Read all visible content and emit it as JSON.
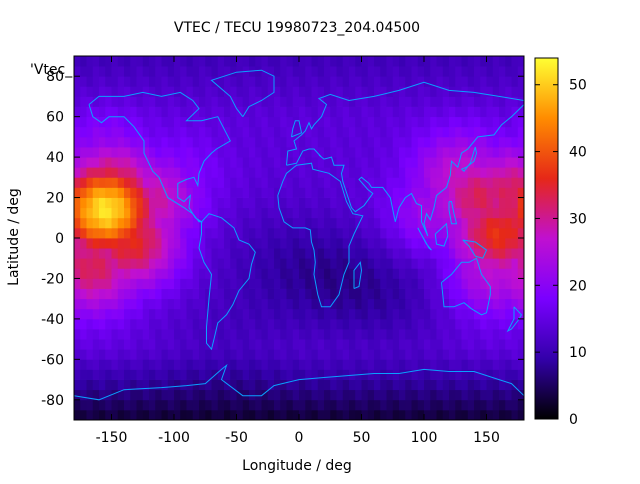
{
  "chart_data": {
    "type": "heatmap",
    "title": "VTEC / TECU 19980723_204.04500",
    "xlabel": "Longitude / deg",
    "ylabel": "Latitude / deg",
    "key_label": "'Vtec_",
    "xlim": [
      -180,
      180
    ],
    "ylim": [
      -90,
      90
    ],
    "zlim": [
      0,
      54
    ],
    "x_ticks": [
      -150,
      -100,
      -50,
      0,
      50,
      100,
      150
    ],
    "y_ticks": [
      -80,
      -60,
      -40,
      -20,
      0,
      20,
      40,
      60,
      80
    ],
    "colorbar_ticks": [
      0,
      10,
      20,
      30,
      40,
      50
    ],
    "colormap": [
      "#000000",
      "#3300aa",
      "#7a00ff",
      "#c010d0",
      "#e62818",
      "#ff8c00",
      "#ffff33"
    ],
    "coastline_color": "#0aa0ff",
    "hotspots": [
      {
        "lon": -155,
        "lat": 14,
        "value": 52
      },
      {
        "lon": -150,
        "lat": 24,
        "value": 36
      },
      {
        "lon": -135,
        "lat": -2,
        "value": 36
      },
      {
        "lon": -165,
        "lat": -14,
        "value": 33
      },
      {
        "lon": -120,
        "lat": 18,
        "value": 30
      },
      {
        "lon": 160,
        "lat": 2,
        "value": 37
      },
      {
        "lon": 145,
        "lat": 20,
        "value": 33
      },
      {
        "lon": 170,
        "lat": 22,
        "value": 33
      },
      {
        "lon": 130,
        "lat": 30,
        "value": 28
      },
      {
        "lon": 155,
        "lat": -16,
        "value": 27
      },
      {
        "lon": 110,
        "lat": 12,
        "value": 24
      },
      {
        "lon": -100,
        "lat": 30,
        "value": 20
      },
      {
        "lon": -155,
        "lat": 40,
        "value": 22
      }
    ]
  }
}
